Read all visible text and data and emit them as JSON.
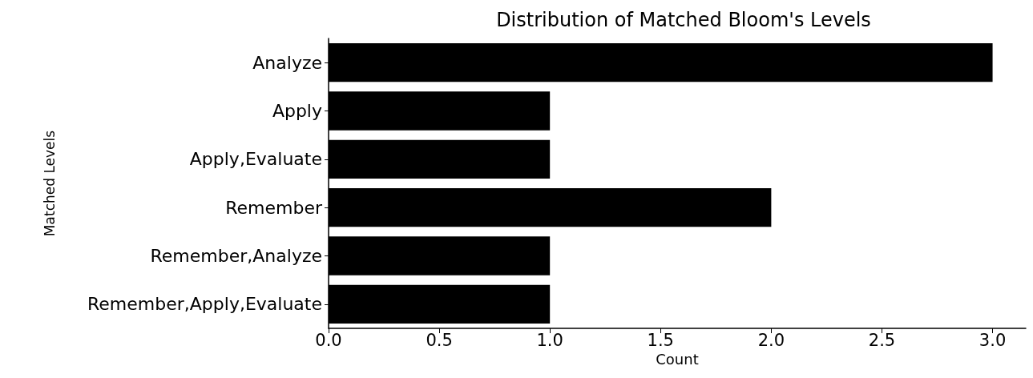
{
  "chart_data": {
    "type": "bar",
    "orientation": "horizontal",
    "title": "Distribution of Matched Bloom's Levels",
    "xlabel": "Count",
    "ylabel": "Matched Levels",
    "categories": [
      "Analyze",
      "Apply",
      "Apply,Evaluate",
      "Remember",
      "Remember,Analyze",
      "Remember,Apply,Evaluate"
    ],
    "values": [
      3,
      1,
      1,
      2,
      1,
      1
    ],
    "color": "#000000",
    "xlim": [
      0,
      3.15
    ],
    "xticks": [
      {
        "value": 0,
        "label": "0.0"
      },
      {
        "value": 0.5,
        "label": "0.5"
      },
      {
        "value": 1,
        "label": "1.0"
      },
      {
        "value": 1.5,
        "label": "1.5"
      },
      {
        "value": 2,
        "label": "2.0"
      },
      {
        "value": 2.5,
        "label": "2.5"
      },
      {
        "value": 3,
        "label": "3.0"
      }
    ]
  }
}
